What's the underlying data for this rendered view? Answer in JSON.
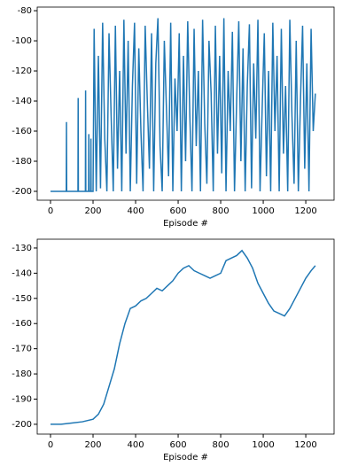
{
  "chart_data": [
    {
      "type": "line",
      "xlabel": "Episode #",
      "color": "#1f77b4",
      "xlim": [
        -62.5,
        1333
      ],
      "ylim": [
        -205.9,
        -77.6
      ],
      "xticks": [
        0,
        200,
        400,
        600,
        800,
        1000,
        1200
      ],
      "yticks": [
        -200,
        -180,
        -160,
        -140,
        -120,
        -100,
        -80
      ],
      "x": [
        0,
        74,
        75,
        76,
        129,
        130,
        131,
        164,
        165,
        166,
        179,
        180,
        181,
        189,
        190,
        191,
        200,
        205,
        215,
        225,
        235,
        245,
        255,
        265,
        275,
        285,
        295,
        305,
        315,
        325,
        335,
        345,
        355,
        365,
        375,
        385,
        395,
        405,
        415,
        425,
        435,
        445,
        455,
        465,
        475,
        485,
        495,
        505,
        515,
        525,
        535,
        545,
        555,
        565,
        575,
        585,
        595,
        605,
        615,
        625,
        635,
        645,
        655,
        665,
        675,
        685,
        695,
        705,
        715,
        725,
        735,
        745,
        755,
        765,
        775,
        785,
        795,
        805,
        815,
        825,
        835,
        845,
        855,
        865,
        875,
        885,
        895,
        905,
        915,
        925,
        935,
        945,
        955,
        965,
        975,
        985,
        995,
        1005,
        1015,
        1025,
        1035,
        1045,
        1055,
        1065,
        1075,
        1085,
        1095,
        1105,
        1115,
        1125,
        1135,
        1145,
        1155,
        1165,
        1175,
        1185,
        1195,
        1205,
        1215,
        1225,
        1235,
        1245
      ],
      "values": [
        -200,
        -200,
        -154,
        -200,
        -200,
        -138,
        -200,
        -200,
        -133,
        -200,
        -200,
        -162,
        -200,
        -200,
        -165,
        -200,
        -200,
        -92,
        -200,
        -110,
        -198,
        -88,
        -165,
        -200,
        -95,
        -150,
        -200,
        -90,
        -185,
        -120,
        -200,
        -86,
        -175,
        -100,
        -200,
        -130,
        -88,
        -195,
        -105,
        -160,
        -200,
        -90,
        -140,
        -185,
        -95,
        -200,
        -115,
        -85,
        -170,
        -200,
        -100,
        -145,
        -190,
        -88,
        -200,
        -125,
        -160,
        -95,
        -200,
        -110,
        -180,
        -87,
        -150,
        -200,
        -92,
        -170,
        -120,
        -200,
        -86,
        -155,
        -195,
        -100,
        -135,
        -200,
        -90,
        -175,
        -110,
        -188,
        -85,
        -200,
        -120,
        -160,
        -94,
        -200,
        -140,
        -87,
        -180,
        -105,
        -200,
        -130,
        -89,
        -198,
        -115,
        -165,
        -86,
        -200,
        -145,
        -95,
        -190,
        -120,
        -200,
        -88,
        -160,
        -110,
        -200,
        -92,
        -175,
        -130,
        -200,
        -86,
        -150,
        -195,
        -100,
        -200,
        -140,
        -90,
        -185,
        -115,
        -200,
        -92,
        -160,
        -135
      ]
    },
    {
      "type": "line",
      "xlabel": "Episode #",
      "color": "#1f77b4",
      "xlim": [
        -62.5,
        1333
      ],
      "ylim": [
        -203.9,
        -126.5
      ],
      "xticks": [
        0,
        200,
        400,
        600,
        800,
        1000,
        1200
      ],
      "yticks": [
        -200,
        -190,
        -180,
        -170,
        -160,
        -150,
        -140,
        -130
      ],
      "x": [
        0,
        50,
        100,
        150,
        200,
        225,
        250,
        275,
        300,
        325,
        350,
        375,
        400,
        425,
        450,
        475,
        500,
        525,
        550,
        575,
        600,
        625,
        650,
        675,
        700,
        725,
        750,
        775,
        800,
        825,
        850,
        875,
        900,
        925,
        950,
        975,
        1000,
        1025,
        1050,
        1075,
        1100,
        1125,
        1150,
        1175,
        1200,
        1225,
        1245
      ],
      "values": [
        -200,
        -200,
        -199.5,
        -199,
        -198,
        -196,
        -192,
        -185,
        -178,
        -168,
        -160,
        -154,
        -153,
        -151,
        -150,
        -148,
        -146,
        -147,
        -145,
        -143,
        -140,
        -138,
        -137,
        -139,
        -140,
        -141,
        -142,
        -141,
        -140,
        -135,
        -134,
        -133,
        -131,
        -134,
        -138,
        -144,
        -148,
        -152,
        -155,
        -156,
        -157,
        -154,
        -150,
        -146,
        -142,
        -139,
        -137
      ]
    }
  ]
}
